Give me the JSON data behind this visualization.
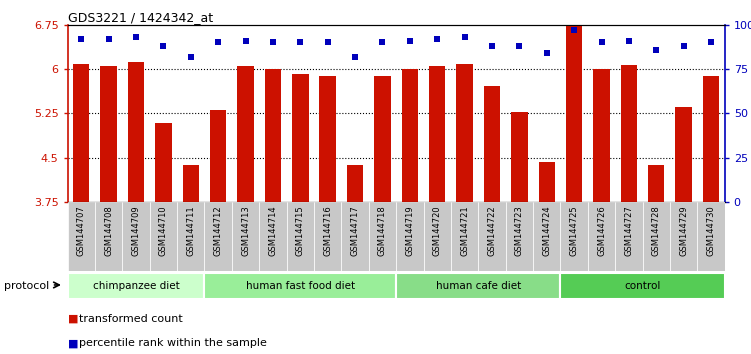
{
  "title": "GDS3221 / 1424342_at",
  "samples": [
    "GSM144707",
    "GSM144708",
    "GSM144709",
    "GSM144710",
    "GSM144711",
    "GSM144712",
    "GSM144713",
    "GSM144714",
    "GSM144715",
    "GSM144716",
    "GSM144717",
    "GSM144718",
    "GSM144719",
    "GSM144720",
    "GSM144721",
    "GSM144722",
    "GSM144723",
    "GSM144724",
    "GSM144725",
    "GSM144726",
    "GSM144727",
    "GSM144728",
    "GSM144729",
    "GSM144730"
  ],
  "bar_values": [
    6.08,
    6.05,
    6.12,
    5.08,
    4.38,
    5.3,
    6.05,
    6.0,
    5.92,
    5.88,
    4.38,
    5.88,
    6.0,
    6.05,
    6.08,
    5.72,
    5.28,
    4.42,
    6.75,
    6.0,
    6.07,
    4.38,
    5.35,
    5.88
  ],
  "percentile_values": [
    92,
    92,
    93,
    88,
    82,
    90,
    91,
    90,
    90,
    90,
    82,
    90,
    91,
    92,
    93,
    88,
    88,
    84,
    97,
    90,
    91,
    86,
    88,
    90
  ],
  "groups": [
    {
      "label": "chimpanzee diet",
      "start": 0,
      "end": 5,
      "color": "#ccffcc"
    },
    {
      "label": "human fast food diet",
      "start": 5,
      "end": 12,
      "color": "#99ee99"
    },
    {
      "label": "human cafe diet",
      "start": 12,
      "end": 18,
      "color": "#88dd88"
    },
    {
      "label": "control",
      "start": 18,
      "end": 24,
      "color": "#55cc55"
    }
  ],
  "bar_color": "#cc1100",
  "percentile_color": "#0000bb",
  "ylim_lo": 3.75,
  "ylim_hi": 6.75,
  "yticks": [
    3.75,
    4.5,
    5.25,
    6.0,
    6.75
  ],
  "ytick_labels": [
    "3.75",
    "4.5",
    "5.25",
    "6",
    "6.75"
  ],
  "right_yticks": [
    0,
    25,
    50,
    75,
    100
  ],
  "right_ytick_labels": [
    "0",
    "25",
    "50",
    "75",
    "100%"
  ],
  "xtick_bg": "#c8c8c8",
  "bar_width": 0.6,
  "fig_width": 7.51,
  "fig_height": 3.54,
  "dpi": 100
}
